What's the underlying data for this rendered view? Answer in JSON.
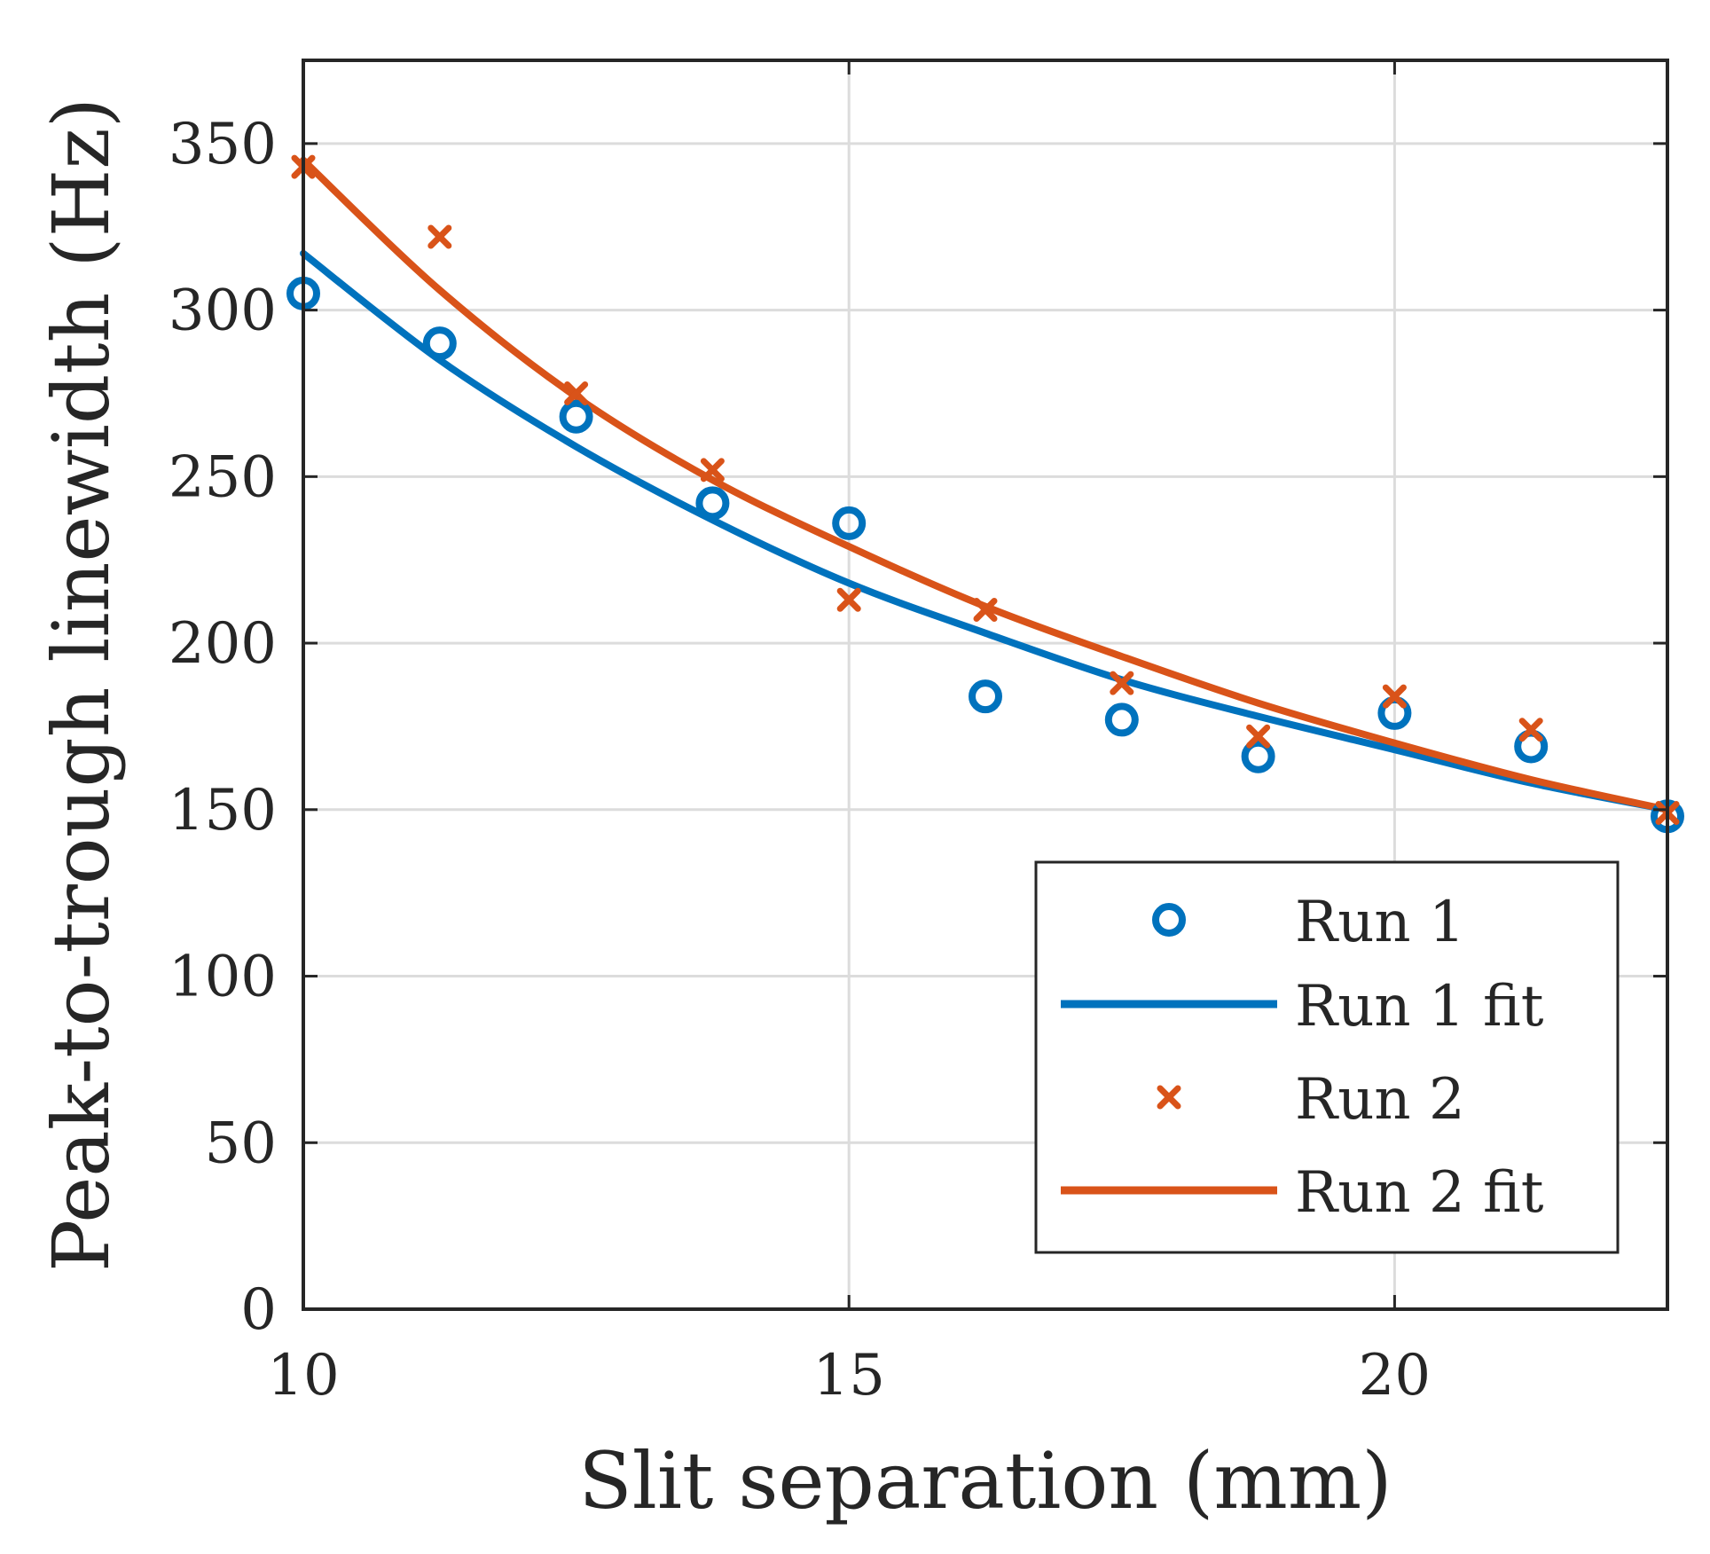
{
  "chart_data": {
    "type": "scatter",
    "title": "",
    "xlabel": "Slit separation (mm)",
    "ylabel": "Peak-to-trough linewidth (Hz)",
    "xlim": [
      10,
      22.5
    ],
    "ylim": [
      0,
      375
    ],
    "xticks": [
      10,
      15,
      20
    ],
    "yticks": [
      0,
      50,
      100,
      150,
      200,
      250,
      300,
      350
    ],
    "grid": true,
    "legend_position": "bottom-right",
    "colors": {
      "run1": "#0072BD",
      "run2": "#D95319",
      "axis": "#262626",
      "grid": "#dcdcdc"
    },
    "series": [
      {
        "name": "Run 1",
        "kind": "markers",
        "marker": "circle",
        "color": "#0072BD",
        "x": [
          10,
          11.25,
          12.5,
          13.75,
          15,
          16.25,
          17.5,
          18.75,
          20,
          21.25,
          22.5
        ],
        "y": [
          305,
          290,
          268,
          242,
          236,
          184,
          177,
          166,
          179,
          169,
          148
        ]
      },
      {
        "name": "Run 1 fit",
        "kind": "line",
        "color": "#0072BD",
        "x": [
          10,
          11.25,
          12.5,
          13.75,
          15,
          16.25,
          17.5,
          18.75,
          20,
          21.25,
          22.5
        ],
        "y": [
          317,
          285,
          259,
          237,
          218,
          203,
          189,
          178,
          168,
          158,
          150
        ]
      },
      {
        "name": "Run 2",
        "kind": "markers",
        "marker": "x",
        "color": "#D95319",
        "x": [
          10,
          11.25,
          12.5,
          13.75,
          15,
          16.25,
          17.5,
          18.75,
          20,
          21.25,
          22.5
        ],
        "y": [
          343,
          322,
          275,
          252,
          213,
          210,
          188,
          172,
          184,
          174,
          149
        ]
      },
      {
        "name": "Run 2 fit",
        "kind": "line",
        "color": "#D95319",
        "x": [
          10,
          11.25,
          12.5,
          13.75,
          15,
          16.25,
          17.5,
          18.75,
          20,
          21.25,
          22.5
        ],
        "y": [
          345,
          306,
          274,
          249,
          229,
          211,
          196,
          182,
          170,
          159,
          150
        ]
      }
    ]
  }
}
